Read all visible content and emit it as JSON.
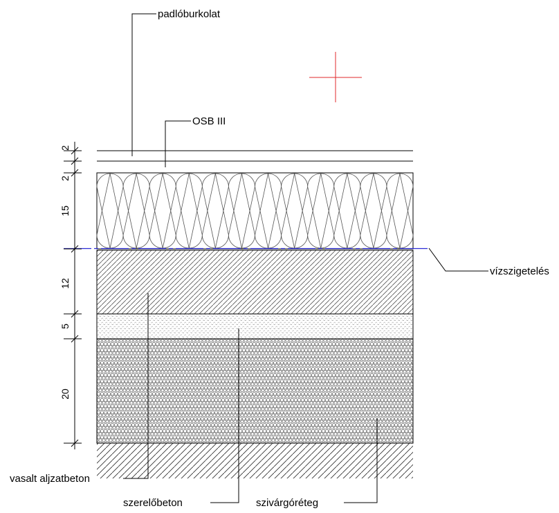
{
  "labels": {
    "floor_covering": "padlóburkolat",
    "osb": "OSB III",
    "waterproofing": "vízszigetelés",
    "reinforced_screed": "vasalt aljzatbeton",
    "lean_concrete": "szerelőbeton",
    "drainage_layer": "szivárgóréteg"
  },
  "dimensions": {
    "d1": "2",
    "d2": "2",
    "d3": "15",
    "d4": "12",
    "d5": "5",
    "d6": "20"
  },
  "colors": {
    "line": "#000000",
    "waterproofing": "#2b2bd6",
    "crosshair": "#e0292b"
  }
}
